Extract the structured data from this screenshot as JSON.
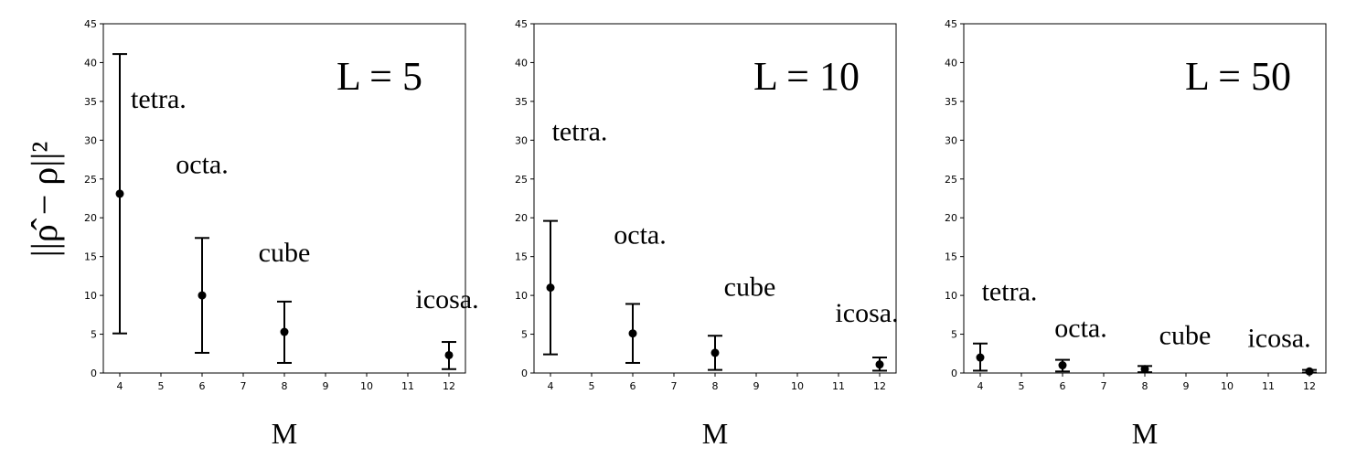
{
  "ylabel": "||ρ̂ − ρ||²",
  "colors": {
    "marks": "#000000",
    "frame": "#000000",
    "background": "#ffffff"
  },
  "chart_data": [
    {
      "type": "scatter",
      "title": "L = 5",
      "xlabel": "M",
      "ylabel": "||ρ̂ − ρ||²",
      "xlim": [
        3.6,
        12.4
      ],
      "ylim": [
        0,
        45
      ],
      "xticks": [
        4,
        5,
        6,
        7,
        8,
        9,
        10,
        11,
        12
      ],
      "yticks": [
        0,
        5,
        10,
        15,
        20,
        25,
        30,
        35,
        40,
        45
      ],
      "grid": false,
      "points": [
        {
          "label": "tetra.",
          "x": 4,
          "y": 23.1,
          "ylow": 5.1,
          "yhigh": 41.1
        },
        {
          "label": "octa.",
          "x": 6,
          "y": 10.0,
          "ylow": 2.6,
          "yhigh": 17.4
        },
        {
          "label": "cube",
          "x": 8,
          "y": 5.3,
          "ylow": 1.3,
          "yhigh": 9.2
        },
        {
          "label": "icosa.",
          "x": 12,
          "y": 2.3,
          "ylow": 0.5,
          "yhigh": 4.0
        }
      ]
    },
    {
      "type": "scatter",
      "title": "L = 10",
      "xlabel": "M",
      "ylabel": "||ρ̂ − ρ||²",
      "xlim": [
        3.6,
        12.4
      ],
      "ylim": [
        0,
        45
      ],
      "xticks": [
        4,
        5,
        6,
        7,
        8,
        9,
        10,
        11,
        12
      ],
      "yticks": [
        0,
        5,
        10,
        15,
        20,
        25,
        30,
        35,
        40,
        45
      ],
      "grid": false,
      "points": [
        {
          "label": "tetra.",
          "x": 4,
          "y": 11.0,
          "ylow": 2.4,
          "yhigh": 19.6
        },
        {
          "label": "octa.",
          "x": 6,
          "y": 5.1,
          "ylow": 1.3,
          "yhigh": 8.9
        },
        {
          "label": "cube",
          "x": 8,
          "y": 2.6,
          "ylow": 0.4,
          "yhigh": 4.8
        },
        {
          "label": "icosa.",
          "x": 12,
          "y": 1.1,
          "ylow": 0.3,
          "yhigh": 2.0
        }
      ]
    },
    {
      "type": "scatter",
      "title": "L = 50",
      "xlabel": "M",
      "ylabel": "||ρ̂ − ρ||²",
      "xlim": [
        3.6,
        12.4
      ],
      "ylim": [
        0,
        45
      ],
      "xticks": [
        4,
        5,
        6,
        7,
        8,
        9,
        10,
        11,
        12
      ],
      "yticks": [
        0,
        5,
        10,
        15,
        20,
        25,
        30,
        35,
        40,
        45
      ],
      "grid": false,
      "points": [
        {
          "label": "tetra.",
          "x": 4,
          "y": 2.0,
          "ylow": 0.3,
          "yhigh": 3.8
        },
        {
          "label": "octa.",
          "x": 6,
          "y": 1.0,
          "ylow": 0.2,
          "yhigh": 1.7
        },
        {
          "label": "cube",
          "x": 8,
          "y": 0.5,
          "ylow": 0.1,
          "yhigh": 0.9
        },
        {
          "label": "icosa.",
          "x": 12,
          "y": 0.2,
          "ylow": 0.05,
          "yhigh": 0.4
        }
      ]
    }
  ]
}
